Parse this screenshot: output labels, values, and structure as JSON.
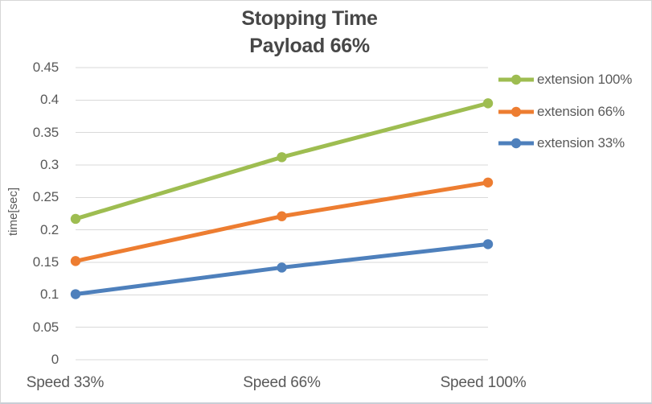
{
  "chart_data": {
    "type": "line",
    "title": "Stopping Time",
    "subtitle": "Payload 66%",
    "categories": [
      "Speed 33%",
      "Speed 66%",
      "Speed 100%"
    ],
    "series": [
      {
        "name": "extension 100%",
        "values": [
          0.217,
          0.312,
          0.395
        ],
        "color": "#9EBD51"
      },
      {
        "name": "extension 66%",
        "values": [
          0.152,
          0.221,
          0.273
        ],
        "color": "#ED7D31"
      },
      {
        "name": "extension 33%",
        "values": [
          0.101,
          0.142,
          0.178
        ],
        "color": "#4E80BC"
      }
    ],
    "xlabel": "",
    "ylabel": "time[sec]",
    "ylim": [
      0,
      0.45
    ],
    "ytick_step": 0.05,
    "ytick_labels_top_to_bottom": [
      "0.45",
      "0.4",
      "0.35",
      "0.3",
      "0.25",
      "0.2",
      "0.15",
      "0.1",
      "0.05",
      "0"
    ],
    "grid": "horizontal",
    "legend_position": "right",
    "marker": "circle"
  },
  "colors": {
    "grid": "#d9d9d9",
    "axis_text": "#595959",
    "title_text": "#474747",
    "frame_border": "#d6d6d6",
    "background": "#ffffff"
  }
}
